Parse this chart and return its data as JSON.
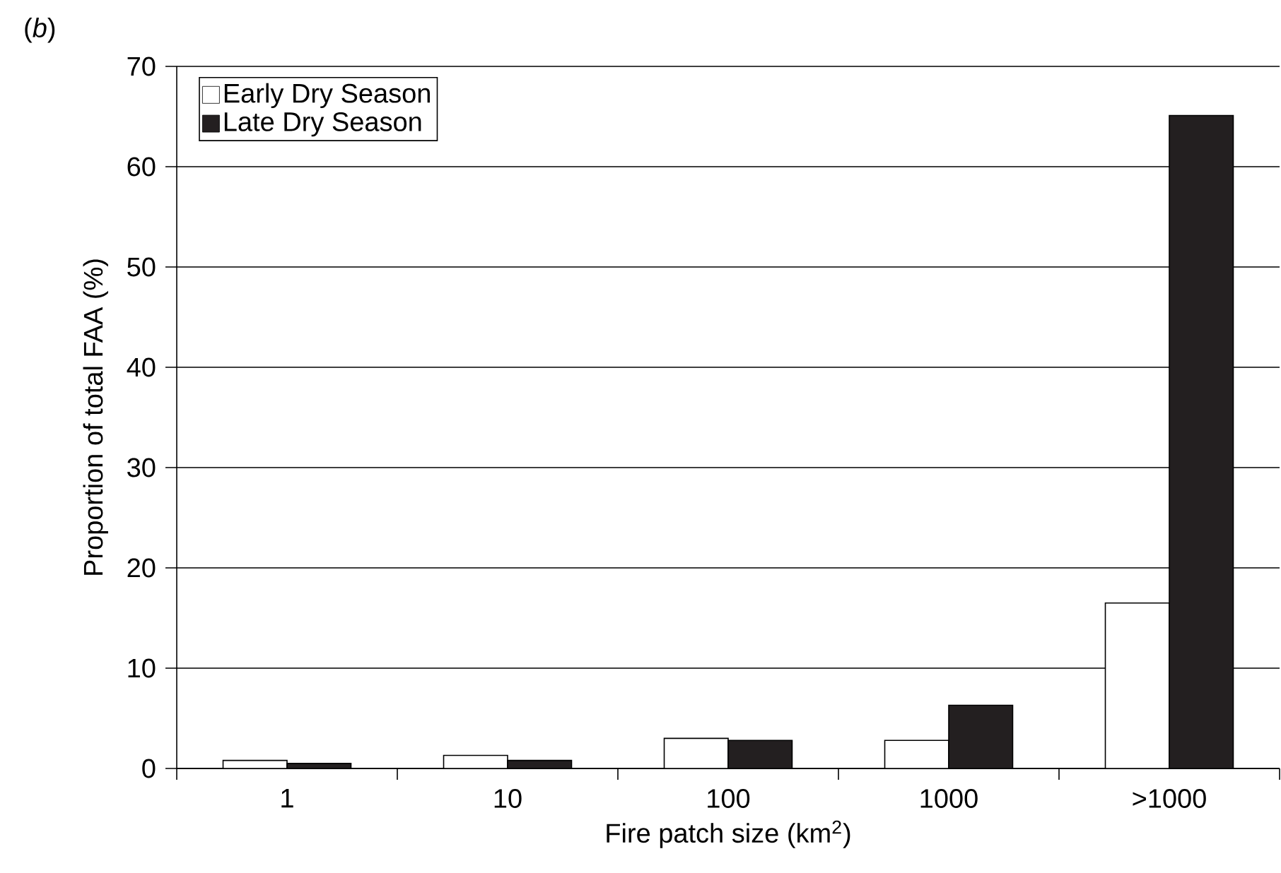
{
  "chart_data": {
    "type": "bar",
    "title": "(*b*)",
    "xlabel": "Fire patch size (km$^{2}$)",
    "ylabel": "Proportion of total FAA (%)",
    "categories": [
      "1",
      "10",
      "100",
      "1000",
      ">1000"
    ],
    "series": [
      {
        "name": "Early Dry Season",
        "color": "#ffffff",
        "values": [
          0.8,
          1.3,
          3.0,
          2.8,
          16.5
        ]
      },
      {
        "name": "Late Dry Season",
        "color": "#231f20",
        "values": [
          0.5,
          0.8,
          2.8,
          6.3,
          65.1
        ]
      }
    ],
    "ylim": [
      0,
      70
    ],
    "yticks": [
      0,
      10,
      20,
      30,
      40,
      50,
      60,
      70
    ],
    "grid": "y",
    "legend": "top left"
  }
}
